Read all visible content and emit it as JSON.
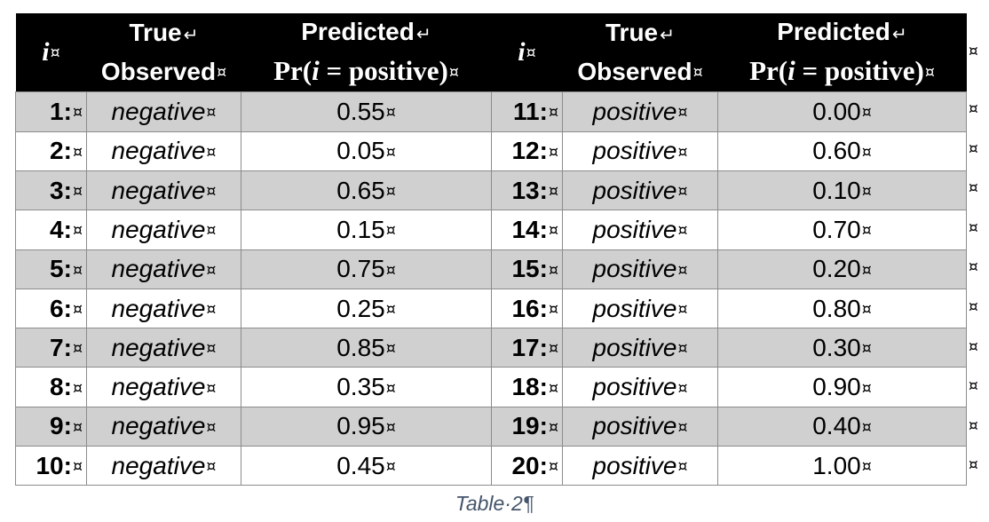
{
  "table": {
    "headers": {
      "i": "i",
      "true_observed_line1": "True",
      "true_observed_line2": "Observed",
      "predicted_line1": "Predicted",
      "predicted_line2": "Pr(i = positive)"
    },
    "cell_mark": "¤",
    "line_break_mark": "↵",
    "rows_left": [
      {
        "i": "1:",
        "observed": "negative",
        "predicted": "0.55"
      },
      {
        "i": "2:",
        "observed": "negative",
        "predicted": "0.05"
      },
      {
        "i": "3:",
        "observed": "negative",
        "predicted": "0.65"
      },
      {
        "i": "4:",
        "observed": "negative",
        "predicted": "0.15"
      },
      {
        "i": "5:",
        "observed": "negative",
        "predicted": "0.75"
      },
      {
        "i": "6:",
        "observed": "negative",
        "predicted": "0.25"
      },
      {
        "i": "7:",
        "observed": "negative",
        "predicted": "0.85"
      },
      {
        "i": "8:",
        "observed": "negative",
        "predicted": "0.35"
      },
      {
        "i": "9:",
        "observed": "negative",
        "predicted": "0.95"
      },
      {
        "i": "10:",
        "observed": "negative",
        "predicted": "0.45"
      }
    ],
    "rows_right": [
      {
        "i": "11:",
        "observed": "positive",
        "predicted": "0.00"
      },
      {
        "i": "12:",
        "observed": "positive",
        "predicted": "0.60"
      },
      {
        "i": "13:",
        "observed": "positive",
        "predicted": "0.10"
      },
      {
        "i": "14:",
        "observed": "positive",
        "predicted": "0.70"
      },
      {
        "i": "15:",
        "observed": "positive",
        "predicted": "0.20"
      },
      {
        "i": "16:",
        "observed": "positive",
        "predicted": "0.80"
      },
      {
        "i": "17:",
        "observed": "positive",
        "predicted": "0.30"
      },
      {
        "i": "18:",
        "observed": "positive",
        "predicted": "0.90"
      },
      {
        "i": "19:",
        "observed": "positive",
        "predicted": "0.40"
      },
      {
        "i": "20:",
        "observed": "positive",
        "predicted": "1.00"
      }
    ]
  },
  "caption": {
    "text": "Table·2",
    "paragraph_mark": "¶"
  },
  "colors": {
    "header_bg": "#000000",
    "header_text": "#ffffff",
    "row_shade": "#d0d0d0",
    "caption": "#44546a"
  }
}
